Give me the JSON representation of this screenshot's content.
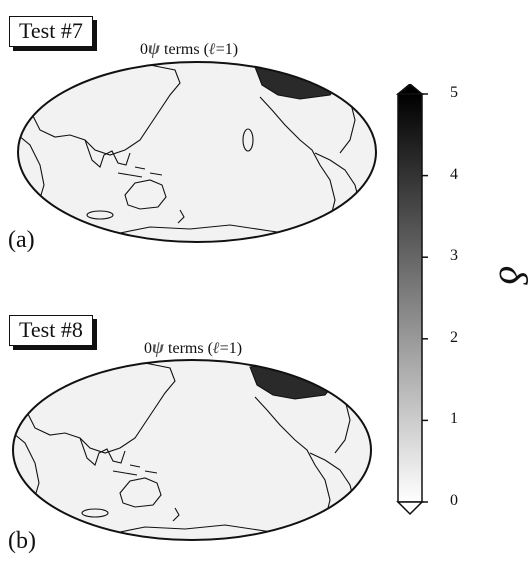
{
  "panels": [
    {
      "test_label": "Test #7",
      "subtitle_prefix": "0",
      "subtitle_psi": "ψ",
      "subtitle_terms": " terms (",
      "subtitle_ell": "ℓ",
      "subtitle_suffix": "=1)",
      "panel_letter": "(a)"
    },
    {
      "test_label": "Test #8",
      "subtitle_prefix": "0",
      "subtitle_psi": "ψ",
      "subtitle_terms": " terms (",
      "subtitle_ell": "ℓ",
      "subtitle_suffix": "=1)",
      "panel_letter": "(b)"
    }
  ],
  "colorbar": {
    "label": "δ",
    "min": 0,
    "max": 5,
    "ticks": [
      "0",
      "1",
      "2",
      "3",
      "4",
      "5"
    ],
    "colormap": [
      "#ffffff",
      "#000000"
    ],
    "extend": "both"
  },
  "colors": {
    "map_fill": "#f2f2f2",
    "coastline": "#111111",
    "high_value_region": "#222222"
  }
}
